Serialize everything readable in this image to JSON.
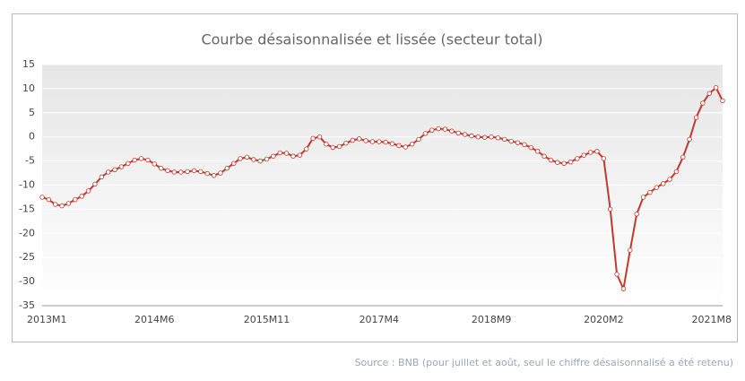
{
  "chart_data": {
    "type": "line",
    "title": "Courbe désaisonnalisée et lissée (secteur total)",
    "source": "Source : BNB (pour juillet et août, seul le chiffre désaisonnalisé a été retenu)",
    "categories": [
      "2013M1",
      null,
      null,
      null,
      null,
      null,
      null,
      null,
      null,
      null,
      null,
      null,
      null,
      null,
      null,
      null,
      null,
      "2014M6",
      null,
      null,
      null,
      null,
      null,
      null,
      null,
      null,
      null,
      null,
      null,
      null,
      null,
      null,
      null,
      null,
      "2015M11",
      null,
      null,
      null,
      null,
      null,
      null,
      null,
      null,
      null,
      null,
      null,
      null,
      null,
      null,
      null,
      null,
      "2017M4",
      null,
      null,
      null,
      null,
      null,
      null,
      null,
      null,
      null,
      null,
      null,
      null,
      null,
      null,
      null,
      null,
      "2018M9",
      null,
      null,
      null,
      null,
      null,
      null,
      null,
      null,
      null,
      null,
      null,
      null,
      null,
      null,
      null,
      null,
      "2020M2",
      null,
      null,
      null,
      null,
      null,
      null,
      null,
      null,
      null,
      null,
      null,
      null,
      null,
      null,
      null,
      null,
      null,
      "2021M8"
    ],
    "series": [
      {
        "color": "#c0392b",
        "values": [
          -12.5,
          -13,
          -14,
          -14.3,
          -13.8,
          -13,
          -12.3,
          -11.2,
          -9.8,
          -8.3,
          -7.3,
          -6.8,
          -6.2,
          -5.5,
          -4.8,
          -4.5,
          -4.8,
          -5.6,
          -6.5,
          -7,
          -7.3,
          -7.3,
          -7.2,
          -7,
          -7.2,
          -7.6,
          -8,
          -7.5,
          -6.5,
          -5.5,
          -4.5,
          -4.2,
          -4.7,
          -5,
          -4.6,
          -4,
          -3.3,
          -3.4,
          -4,
          -3.8,
          -2.5,
          -0.3,
          0,
          -1.5,
          -2.2,
          -2,
          -1.3,
          -0.7,
          -0.4,
          -0.8,
          -1,
          -1,
          -1.1,
          -1.4,
          -1.8,
          -2.1,
          -1.5,
          -0.5,
          0.7,
          1.4,
          1.7,
          1.6,
          1.2,
          0.8,
          0.5,
          0.2,
          0,
          -0.1,
          0,
          -0.2,
          -0.5,
          -0.9,
          -1.2,
          -1.6,
          -2.2,
          -3,
          -4,
          -4.8,
          -5.3,
          -5.5,
          -5.2,
          -4.5,
          -3.8,
          -3.2,
          -3,
          -4.5,
          -15,
          -28.5,
          -31.5,
          -23.5,
          -16,
          -12.5,
          -11.5,
          -10.5,
          -9.7,
          -8.8,
          -7.2,
          -4.2,
          -0.5,
          4,
          7,
          9,
          10.2,
          7.5
        ]
      }
    ],
    "ylim": [
      -35,
      15
    ],
    "yticks": [
      -35,
      -30,
      -25,
      -20,
      -15,
      -10,
      -5,
      0,
      5,
      10,
      15
    ]
  }
}
